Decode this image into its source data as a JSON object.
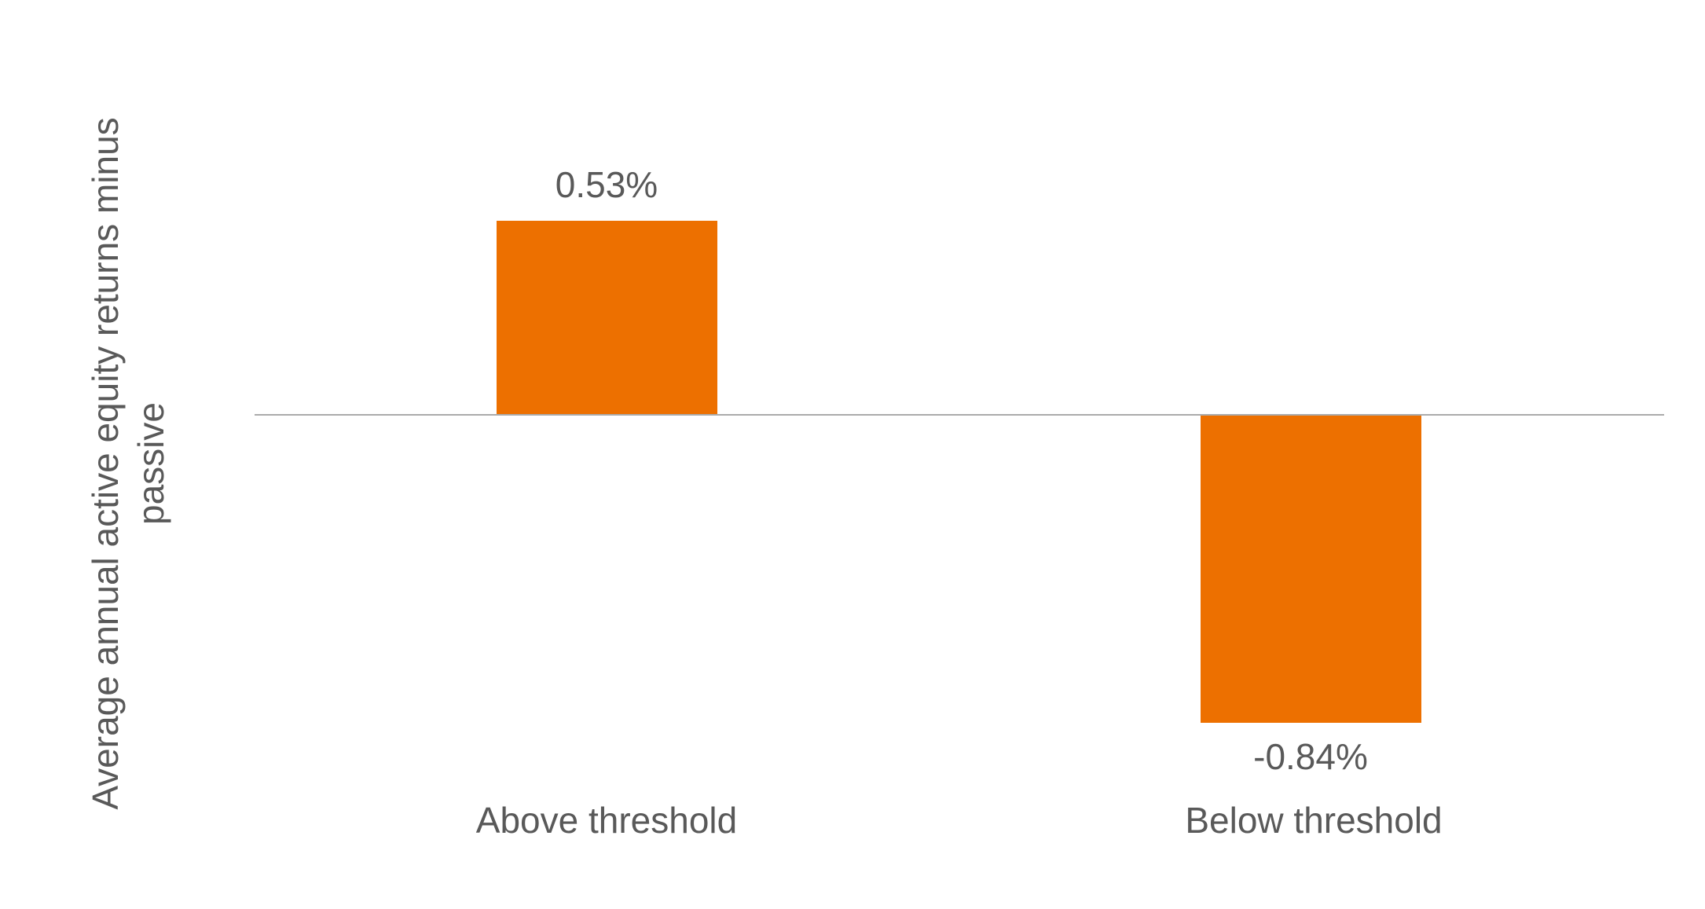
{
  "chart_data": {
    "type": "bar",
    "categories": [
      "Above threshold",
      "Below threshold"
    ],
    "values": [
      0.53,
      -0.84
    ],
    "data_labels": [
      "0.53%",
      "-0.84%"
    ],
    "title": "",
    "xlabel": "",
    "ylabel": "Average annual active equity returns minus passive",
    "ylabel_lines": [
      "Average annual active equity returns minus",
      "passive"
    ],
    "grid": false,
    "legend": "none",
    "bar_color": "#ED7000",
    "text_color": "#595959",
    "axis_line_color": "#ABABAB"
  }
}
